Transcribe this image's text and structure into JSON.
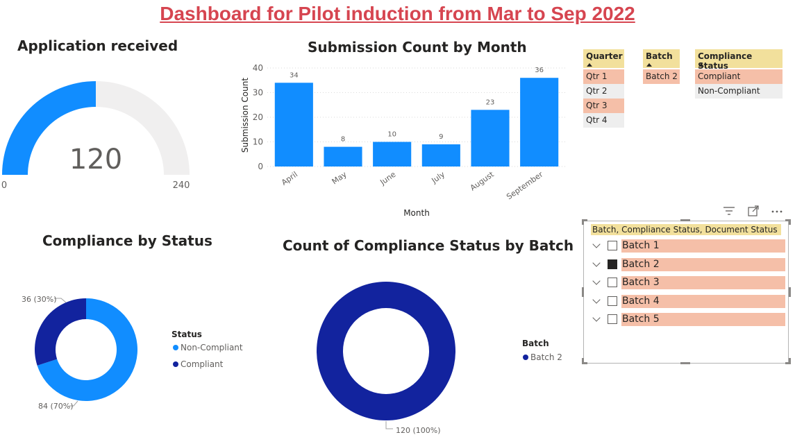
{
  "page_title": "Dashboard for Pilot induction from Mar to Sep 2022",
  "gauge": {
    "title": "Application received",
    "value": 120,
    "value_label": "120",
    "min": 0,
    "max": 240,
    "min_label": "0",
    "max_label": "240",
    "fill_color": "#118dff",
    "track_color": "#f0efef"
  },
  "chart_data": [
    {
      "type": "bar",
      "title": "Submission Count by Month",
      "xlabel": "Month",
      "ylabel": "Submission Count",
      "categories": [
        "April",
        "May",
        "June",
        "July",
        "August",
        "September"
      ],
      "values": [
        34,
        8,
        10,
        9,
        23,
        36
      ],
      "value_labels": [
        "34",
        "8",
        "10",
        "9",
        "23",
        "36"
      ],
      "yticks": [
        "0",
        "10",
        "20",
        "30",
        "40"
      ],
      "ylim": [
        0,
        40
      ],
      "color": "#118dff",
      "grid": true
    },
    {
      "type": "pie",
      "title": "Compliance by Status",
      "legend_title": "Status",
      "legend_position": "right",
      "series": [
        {
          "name": "Non-Compliant",
          "value": 84,
          "label": "84 (70%)",
          "color": "#118dff"
        },
        {
          "name": "Compliant",
          "value": 36,
          "label": "36 (30%)",
          "color": "#12239e"
        }
      ]
    },
    {
      "type": "pie",
      "title": "Count of Compliance Status by Batch",
      "legend_title": "Batch",
      "legend_position": "right",
      "series": [
        {
          "name": "Batch 2",
          "value": 120,
          "label": "120 (100%)",
          "color": "#12239e"
        }
      ]
    }
  ],
  "slicers": {
    "quarter": {
      "header": "Quarter",
      "items": [
        {
          "label": "Qtr 1",
          "selected": true
        },
        {
          "label": "Qtr 2",
          "selected": false
        },
        {
          "label": "Qtr 3",
          "selected": true
        },
        {
          "label": "Qtr 4",
          "selected": false
        }
      ]
    },
    "batch": {
      "header": "Batch",
      "items": [
        {
          "label": "Batch 2",
          "selected": true
        }
      ]
    },
    "compliance": {
      "header": "Compliance Status",
      "items": [
        {
          "label": "Compliant",
          "selected": true
        },
        {
          "label": "Non-Compliant",
          "selected": false
        }
      ]
    }
  },
  "hierarchy_slicer": {
    "header": "Batch, Compliance Status, Document Status",
    "items": [
      {
        "label": "Batch 1",
        "checked": false
      },
      {
        "label": "Batch 2",
        "checked": true
      },
      {
        "label": "Batch 3",
        "checked": false
      },
      {
        "label": "Batch 4",
        "checked": false
      },
      {
        "label": "Batch 5",
        "checked": false
      }
    ],
    "toolbar_icons": [
      "filter-icon",
      "focus-mode-icon",
      "more-options-icon"
    ]
  },
  "colors": {
    "selection": "#f5bfa8",
    "header": "#f2e09c",
    "unselected": "#eeeeee",
    "title_red": "#d64550"
  }
}
